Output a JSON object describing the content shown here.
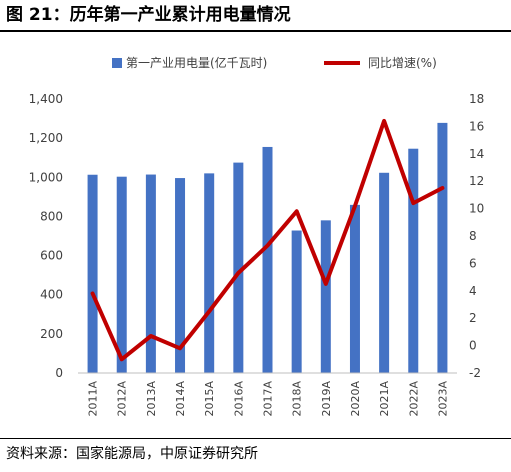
{
  "figure": {
    "title": "图 21：历年第一产业累计用电量情况",
    "source": "资料来源：国家能源局，中原证券研究所"
  },
  "chart_data": {
    "type": "bar",
    "categories": [
      "2011A",
      "2012A",
      "2013A",
      "2014A",
      "2015A",
      "2016A",
      "2017A",
      "2018A",
      "2019A",
      "2020A",
      "2021A",
      "2022A",
      "2023A"
    ],
    "series": [
      {
        "name": "第一产业用电量(亿千瓦时)",
        "type": "bar",
        "axis": "left",
        "color": "#4472C4",
        "values": [
          1013,
          1003,
          1014,
          996,
          1020,
          1075,
          1155,
          728,
          780,
          859,
          1023,
          1146,
          1278
        ]
      },
      {
        "name": "同比增速(%)",
        "type": "line",
        "axis": "right",
        "color": "#C00000",
        "values": [
          3.8,
          -1.0,
          0.7,
          -0.2,
          2.5,
          5.3,
          7.3,
          9.8,
          4.5,
          10.2,
          16.4,
          10.4,
          11.5
        ]
      }
    ],
    "y_left": {
      "lim": [
        0,
        1400
      ],
      "ticks": [
        0,
        200,
        400,
        600,
        800,
        1000,
        1200,
        1400
      ],
      "tick_labels": [
        "0",
        "200",
        "400",
        "600",
        "800",
        "1,000",
        "1,200",
        "1,400"
      ]
    },
    "y_right": {
      "lim": [
        -2,
        18
      ],
      "ticks": [
        -2,
        0,
        2,
        4,
        6,
        8,
        10,
        12,
        14,
        16,
        18
      ],
      "tick_labels": [
        "-2",
        "0",
        "2",
        "4",
        "6",
        "8",
        "10",
        "12",
        "14",
        "16",
        "18"
      ]
    },
    "legend_position": "top",
    "grid": false,
    "xlabel": "",
    "ylabel": ""
  }
}
